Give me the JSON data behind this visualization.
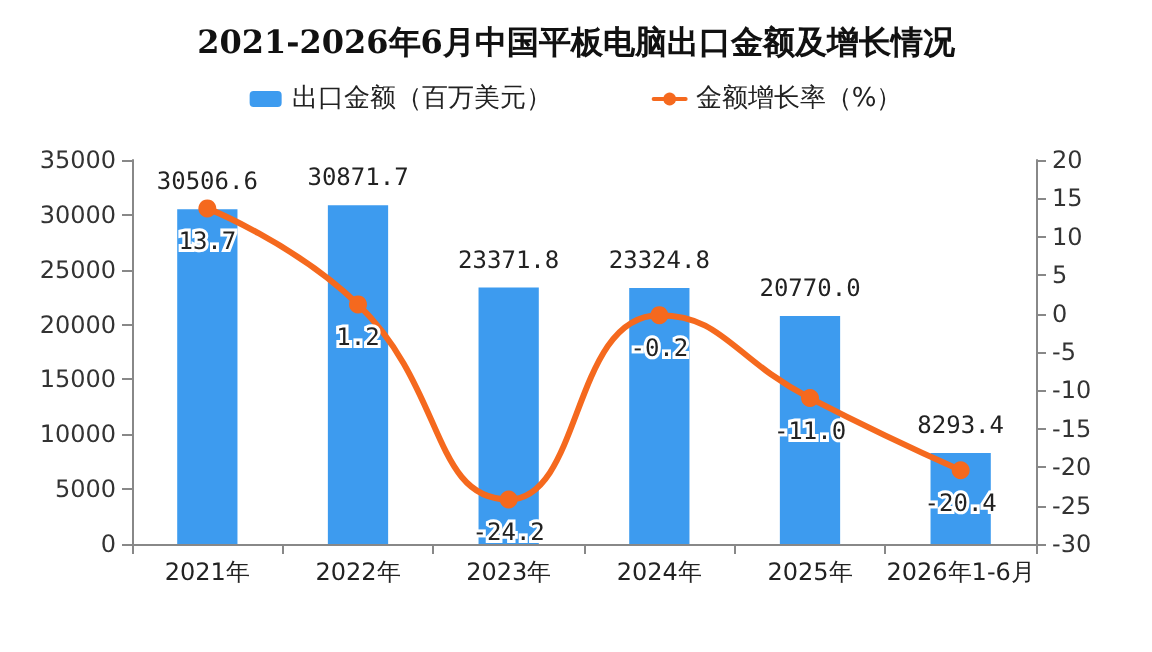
{
  "chart_data": {
    "type": "bar",
    "title": "2021-2026年6月中国平板电脑出口金额及增长情况",
    "categories": [
      "2021年",
      "2022年",
      "2023年",
      "2024年",
      "2025年",
      "2026年1-6月"
    ],
    "series": [
      {
        "name": "出口金额（百万美元）",
        "color": "#3d9bef",
        "values": [
          30506.6,
          30871.7,
          23371.8,
          23324.8,
          20770.0,
          8293.4
        ],
        "value_labels": [
          "30506.6",
          "30871.7",
          "23371.8",
          "23324.8",
          "20770.0",
          "8293.4"
        ]
      },
      {
        "name": "金额增长率（%）",
        "type": "line",
        "axis": "y2",
        "color": "#f5691e",
        "marker": "circle",
        "values": [
          13.7,
          1.2,
          -24.2,
          -0.2,
          -11.0,
          -20.4
        ],
        "value_labels": [
          "13.7",
          "1.2",
          "-24.2",
          "-0.2",
          "-11.0",
          "-20.4"
        ]
      }
    ],
    "ylim": [
      0,
      35000
    ],
    "yticks": [
      0,
      5000,
      10000,
      15000,
      20000,
      25000,
      30000,
      35000
    ],
    "y2lim": [
      -30,
      20
    ],
    "y2ticks": [
      -30,
      -25,
      -20,
      -15,
      -10,
      -5,
      0,
      5,
      10,
      15,
      20
    ],
    "grid": false,
    "legend": "top"
  }
}
